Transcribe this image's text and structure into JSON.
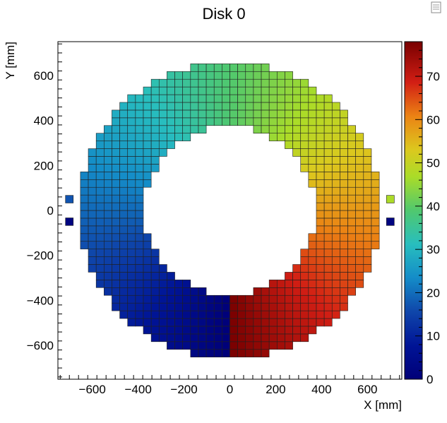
{
  "chart_data": {
    "type": "heatmap",
    "title": "Disk 0",
    "xlabel": "X [mm]",
    "ylabel": "Y [mm]",
    "xlim": [
      -750,
      750
    ],
    "ylim": [
      -750,
      750
    ],
    "x_ticks": [
      -600,
      -400,
      -200,
      0,
      200,
      400,
      600
    ],
    "y_ticks": [
      -600,
      -400,
      -200,
      0,
      200,
      400,
      600
    ],
    "colorbar": {
      "range": [
        0,
        78
      ],
      "ticks": [
        0,
        10,
        20,
        30,
        40,
        50,
        60,
        70
      ],
      "palette": "rainbow"
    },
    "ring": {
      "inner_radius": 374,
      "outer_radius": 660,
      "cell_size": 34.3,
      "value_range": [
        0,
        78
      ],
      "value_by_angle": "increases clockwise starting at the bottom (-90°)"
    },
    "markers": [
      {
        "x": -700,
        "y": 50,
        "value": 17
      },
      {
        "x": -700,
        "y": -50,
        "value": 2
      },
      {
        "x": 700,
        "y": 50,
        "value": 47
      },
      {
        "x": 700,
        "y": -50,
        "value": 2
      }
    ]
  },
  "legend_icon": "canvas-options-icon"
}
